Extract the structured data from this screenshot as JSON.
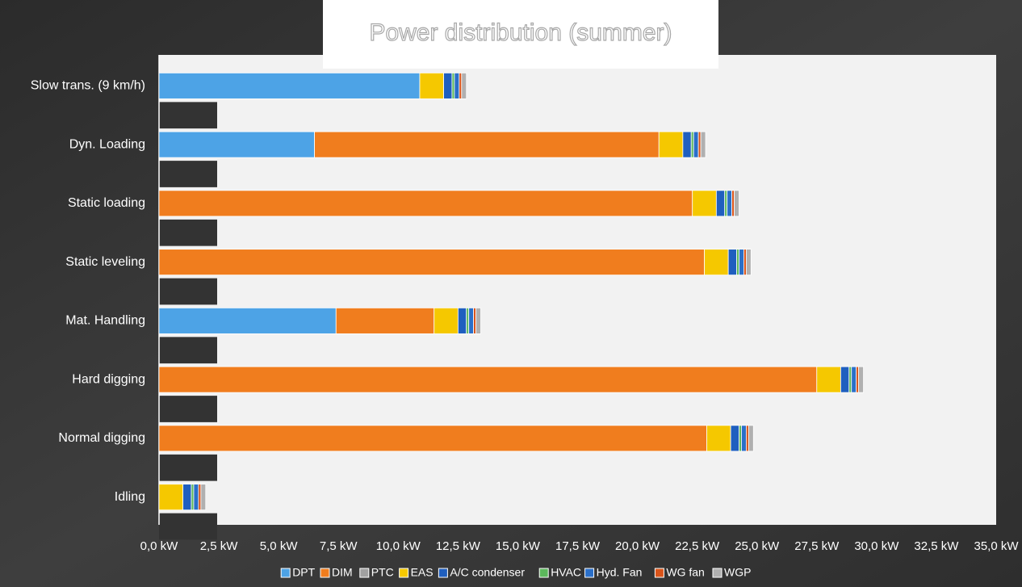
{
  "chart_data": {
    "type": "stacked-bar-horizontal",
    "title": "Power distribution (summer)",
    "categories": [
      "Slow trans. (9 km/h)",
      "Dyn. Loading",
      "Static loading",
      "Static leveling",
      "Mat. Handling",
      "Hard digging",
      "Normal digging",
      "Idling"
    ],
    "series": [
      {
        "name": "DPT",
        "color": "#4da3e6",
        "values": [
          10.9,
          6.5,
          0,
          0,
          7.4,
          0,
          0,
          0
        ]
      },
      {
        "name": "DIM",
        "color": "#f07d1e",
        "values": [
          0,
          14.4,
          22.3,
          22.8,
          4.1,
          27.5,
          22.9,
          0
        ]
      },
      {
        "name": "PTC",
        "color": "#a0a0a0",
        "values": [
          0,
          0,
          0,
          0,
          0,
          0,
          0,
          0
        ]
      },
      {
        "name": "EAS",
        "color": "#f5c800",
        "values": [
          1.0,
          1.0,
          1.0,
          1.0,
          1.0,
          1.0,
          1.0,
          1.0
        ]
      },
      {
        "name": "A/C condenser",
        "color": "#1f5fbf",
        "values": [
          0.35,
          0.35,
          0.35,
          0.35,
          0.35,
          0.35,
          0.35,
          0.35
        ]
      },
      {
        "name": "HVAC",
        "color": "#5cb85c",
        "values": [
          0.1,
          0.1,
          0.1,
          0.1,
          0.1,
          0.1,
          0.1,
          0.1
        ]
      },
      {
        "name": "Hyd. Fan",
        "color": "#2a6fc9",
        "values": [
          0.2,
          0.2,
          0.2,
          0.2,
          0.2,
          0.2,
          0.2,
          0.2
        ]
      },
      {
        "name": "WG fan",
        "color": "#d9541a",
        "values": [
          0.1,
          0.1,
          0.1,
          0.1,
          0.1,
          0.1,
          0.1,
          0.1
        ]
      },
      {
        "name": "WGP",
        "color": "#b0b0b0",
        "values": [
          0.2,
          0.2,
          0.2,
          0.2,
          0.2,
          0.2,
          0.2,
          0.2
        ]
      }
    ],
    "xlim": [
      0,
      35
    ],
    "xticks": [
      {
        "value": 0,
        "label": "0,0 kW"
      },
      {
        "value": 2.5,
        "label": "2,5 kW"
      },
      {
        "value": 5,
        "label": "5,0 kW"
      },
      {
        "value": 7.5,
        "label": "7,5 kW"
      },
      {
        "value": 10,
        "label": "10,0 kW"
      },
      {
        "value": 12.5,
        "label": "12,5 kW"
      },
      {
        "value": 15,
        "label": "15,0 kW"
      },
      {
        "value": 17.5,
        "label": "17,5 kW"
      },
      {
        "value": 20,
        "label": "20,0 kW"
      },
      {
        "value": 22.5,
        "label": "22,5 kW"
      },
      {
        "value": 25,
        "label": "25,0 kW"
      },
      {
        "value": 27.5,
        "label": "27,5 kW"
      },
      {
        "value": 30,
        "label": "30,0 kW"
      },
      {
        "value": 32.5,
        "label": "32,5 kW"
      },
      {
        "value": 35,
        "label": "35,0 kW"
      }
    ],
    "legend": "bottom"
  }
}
